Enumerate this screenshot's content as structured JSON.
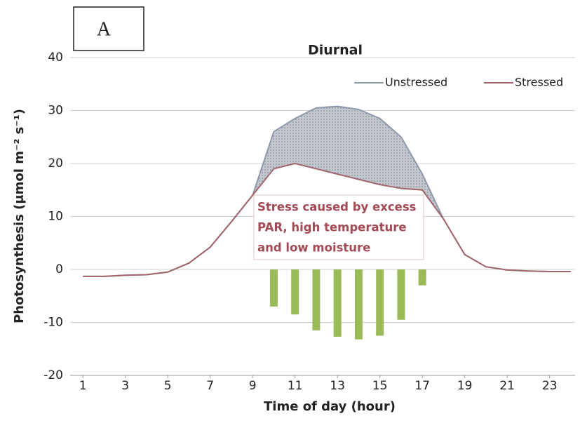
{
  "chart_data": {
    "type": "line",
    "panel_label": "A",
    "title": "Diurnal",
    "x_label": "Time of day (hour)",
    "y_label": "Photosynthesis (μmol m⁻² s⁻¹)",
    "x": [
      1,
      2,
      3,
      4,
      5,
      6,
      7,
      8,
      9,
      10,
      11,
      12,
      13,
      14,
      15,
      16,
      17,
      18,
      19,
      20,
      21,
      22,
      23,
      24
    ],
    "series": [
      {
        "name": "Unstressed",
        "color": "#8e9aab",
        "values": [
          -1.3,
          -1.3,
          -1.1,
          -1.0,
          -0.5,
          1.2,
          4.2,
          9,
          14,
          26,
          28.5,
          30.5,
          30.8,
          30.2,
          28.5,
          25,
          18,
          9.5,
          2.8,
          0.5,
          -0.1,
          -0.3,
          -0.4,
          -0.4
        ]
      },
      {
        "name": "Stressed",
        "color": "#a3656c",
        "values": [
          -1.3,
          -1.3,
          -1.1,
          -1.0,
          -0.5,
          1.2,
          4.2,
          9,
          14,
          19,
          20,
          19,
          18,
          17,
          16,
          15.3,
          15,
          9.5,
          2.8,
          0.5,
          -0.1,
          -0.3,
          -0.4,
          -0.4
        ]
      }
    ],
    "bars": {
      "color": "#9bbb59",
      "x": [
        10,
        11,
        12,
        13,
        14,
        15,
        16,
        17
      ],
      "values": [
        -7,
        -8.5,
        -11.5,
        -12.7,
        -13.2,
        -12.5,
        -9.5,
        -3
      ]
    },
    "annotation": [
      "Stress caused by excess",
      "PAR, high temperature",
      "and low moisture"
    ],
    "xlim": [
      0.4,
      24.2
    ],
    "xticks": [
      1,
      3,
      5,
      7,
      9,
      11,
      13,
      15,
      17,
      19,
      21,
      23
    ],
    "ylim": [
      -20,
      40
    ],
    "yticks": [
      -20,
      -10,
      0,
      10,
      20,
      30,
      40
    ],
    "grid": true,
    "legend": "top-right"
  }
}
